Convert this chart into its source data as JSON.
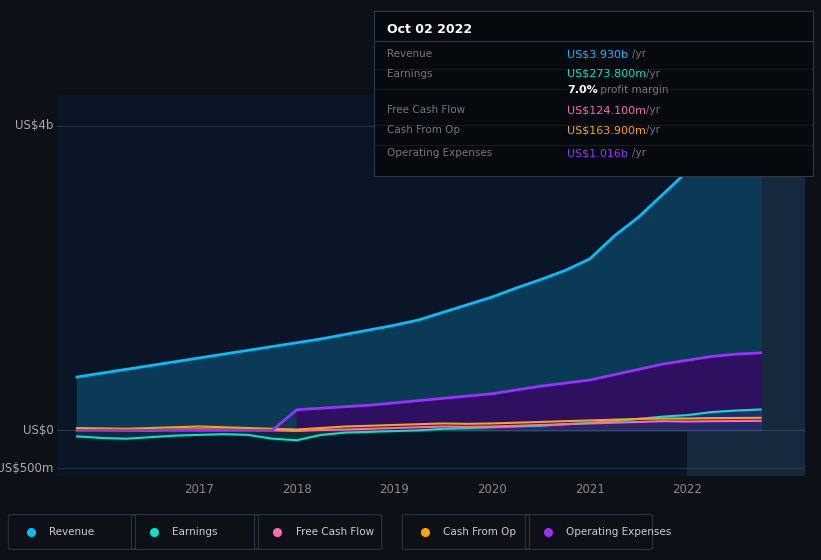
{
  "bg_color": "#0d1117",
  "chart_area_color": "#0a1628",
  "ylabel_top": "US$4b",
  "ylabel_mid": "US$0",
  "ylabel_bot": "-US$500m",
  "x_labels": [
    "2017",
    "2018",
    "2019",
    "2020",
    "2021",
    "2022"
  ],
  "years": [
    2015.75,
    2016.0,
    2016.25,
    2016.5,
    2016.75,
    2017.0,
    2017.25,
    2017.5,
    2017.75,
    2018.0,
    2018.25,
    2018.5,
    2018.75,
    2019.0,
    2019.25,
    2019.5,
    2019.75,
    2020.0,
    2020.25,
    2020.5,
    2020.75,
    2021.0,
    2021.25,
    2021.5,
    2021.75,
    2022.0,
    2022.25,
    2022.5,
    2022.75
  ],
  "revenue": [
    700,
    750,
    800,
    850,
    900,
    950,
    1000,
    1050,
    1100,
    1150,
    1200,
    1260,
    1320,
    1380,
    1450,
    1550,
    1650,
    1750,
    1870,
    1980,
    2100,
    2250,
    2550,
    2800,
    3100,
    3400,
    3700,
    3900,
    3930
  ],
  "earnings": [
    -80,
    -100,
    -110,
    -90,
    -70,
    -60,
    -50,
    -60,
    -110,
    -130,
    -60,
    -30,
    -20,
    -10,
    0,
    20,
    30,
    40,
    50,
    60,
    80,
    100,
    120,
    150,
    180,
    200,
    240,
    260,
    274
  ],
  "free_cash_flow": [
    10,
    5,
    0,
    -5,
    10,
    15,
    10,
    5,
    0,
    -10,
    5,
    10,
    20,
    30,
    40,
    50,
    45,
    50,
    60,
    70,
    80,
    90,
    100,
    110,
    120,
    115,
    120,
    122,
    124
  ],
  "cash_from_op": [
    30,
    25,
    20,
    30,
    40,
    50,
    40,
    30,
    20,
    10,
    30,
    50,
    60,
    70,
    80,
    90,
    85,
    90,
    100,
    110,
    120,
    130,
    140,
    150,
    155,
    155,
    160,
    162,
    164
  ],
  "operating_expenses": [
    0,
    0,
    0,
    0,
    0,
    0,
    0,
    0,
    0,
    270,
    290,
    310,
    330,
    360,
    390,
    420,
    450,
    480,
    530,
    580,
    620,
    660,
    730,
    800,
    870,
    920,
    970,
    1000,
    1016
  ],
  "revenue_color": "#00bfff",
  "revenue_fill": "#0a3a55",
  "earnings_color": "#00e5cc",
  "free_cash_flow_color": "#ff69b4",
  "cash_from_op_color": "#ffa500",
  "operating_expenses_color": "#9b30ff",
  "operating_expenses_fill": "#2e1060",
  "highlight_start": 2022.0,
  "highlight_end": 2023.2,
  "highlight_color": "#1a2d40",
  "ylim_min": -600,
  "ylim_max": 4400,
  "xlim_min": 2015.55,
  "xlim_max": 2023.2,
  "tooltip": {
    "date": "Oct 02 2022",
    "rows": [
      {
        "label": "Revenue",
        "value": "US$3.930b",
        "unit": "/yr",
        "value_color": "#00bfff"
      },
      {
        "label": "Earnings",
        "value": "US$273.800m",
        "unit": "/yr",
        "value_color": "#00e5cc"
      },
      {
        "label": "",
        "value": "7.0%",
        "unit": " profit margin",
        "value_color": "#ffffff",
        "bold": true
      },
      {
        "label": "Free Cash Flow",
        "value": "US$124.100m",
        "unit": "/yr",
        "value_color": "#ff69b4"
      },
      {
        "label": "Cash From Op",
        "value": "US$163.900m",
        "unit": "/yr",
        "value_color": "#ffa500"
      },
      {
        "label": "Operating Expenses",
        "value": "US$1.016b",
        "unit": "/yr",
        "value_color": "#9b30ff"
      }
    ]
  },
  "legend_items": [
    {
      "label": "Revenue",
      "color": "#00bfff"
    },
    {
      "label": "Earnings",
      "color": "#00e5cc"
    },
    {
      "label": "Free Cash Flow",
      "color": "#ff69b4"
    },
    {
      "label": "Cash From Op",
      "color": "#ffa500"
    },
    {
      "label": "Operating Expenses",
      "color": "#9b30ff"
    }
  ]
}
